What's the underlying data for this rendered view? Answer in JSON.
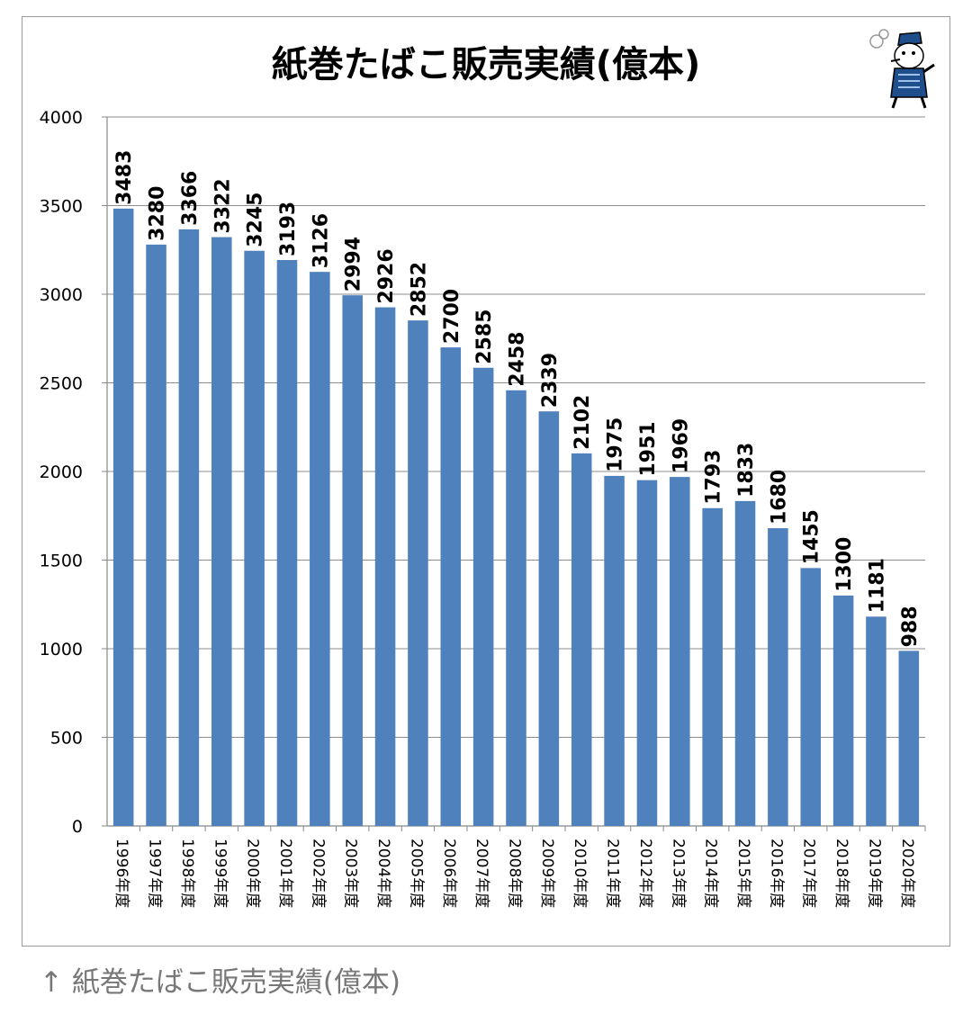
{
  "chart_data": {
    "type": "bar",
    "title": "紙巻たばこ販売実績(億本)",
    "xlabel": "",
    "ylabel": "",
    "ylim": [
      0,
      4000
    ],
    "yticks": [
      "0",
      "500",
      "1000",
      "1500",
      "2000",
      "2500",
      "3000",
      "3500",
      "4000"
    ],
    "categories": [
      "1996年度",
      "1997年度",
      "1998年度",
      "1999年度",
      "2000年度",
      "2001年度",
      "2002年度",
      "2003年度",
      "2004年度",
      "2005年度",
      "2006年度",
      "2007年度",
      "2008年度",
      "2009年度",
      "2010年度",
      "2011年度",
      "2012年度",
      "2013年度",
      "2014年度",
      "2015年度",
      "2016年度",
      "2017年度",
      "2018年度",
      "2019年度",
      "2020年度"
    ],
    "values": [
      3483,
      3280,
      3366,
      3322,
      3245,
      3193,
      3126,
      2994,
      2926,
      2852,
      2700,
      2585,
      2458,
      2339,
      2102,
      1975,
      1951,
      1969,
      1793,
      1833,
      1680,
      1455,
      1300,
      1181,
      988
    ],
    "grid": true,
    "legend": "none",
    "bar_color": "#4f81bd",
    "grid_color": "#8c8c8c"
  },
  "caption": "↑ 紙巻たばこ販売実績(億本)",
  "mascot_icon": "smoking-mascot-icon"
}
